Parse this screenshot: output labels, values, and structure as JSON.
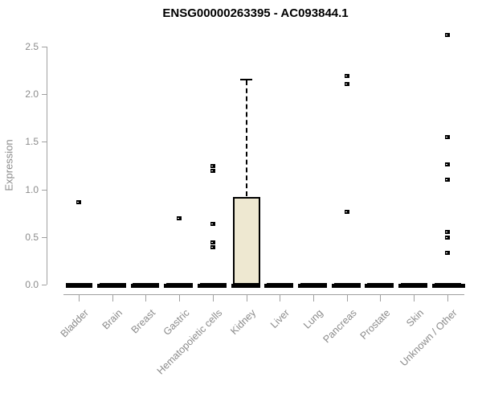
{
  "title": "ENSG00000263395 - AC093844.1",
  "chart_data": {
    "type": "box",
    "title": "ENSG00000263395 - AC093844.1",
    "xlabel": "",
    "ylabel": "Expression",
    "ylim": [
      0,
      2.5
    ],
    "yticks": [
      0.0,
      0.5,
      1.0,
      1.5,
      2.0,
      2.5
    ],
    "grid": false,
    "legend": "none",
    "categories": [
      "Bladder",
      "Brain",
      "Breast",
      "Gastric",
      "Hematopoietic cells",
      "Kidney",
      "Liver",
      "Lung",
      "Pancreas",
      "Prostate",
      "Skin",
      "Unknown / Other"
    ],
    "boxes": [
      {
        "category": "Bladder",
        "median": 0,
        "q1": 0,
        "q3": 0,
        "whisker_low": 0,
        "whisker_high": 0,
        "outliers": [
          0.87
        ]
      },
      {
        "category": "Brain",
        "median": 0,
        "q1": 0,
        "q3": 0,
        "whisker_low": 0,
        "whisker_high": 0,
        "outliers": []
      },
      {
        "category": "Breast",
        "median": 0,
        "q1": 0,
        "q3": 0,
        "whisker_low": 0,
        "whisker_high": 0,
        "outliers": []
      },
      {
        "category": "Gastric",
        "median": 0,
        "q1": 0,
        "q3": 0,
        "whisker_low": 0,
        "whisker_high": 0,
        "outliers": [
          0.7
        ]
      },
      {
        "category": "Hematopoietic cells",
        "median": 0,
        "q1": 0,
        "q3": 0,
        "whisker_low": 0,
        "whisker_high": 0,
        "outliers": [
          1.25,
          1.2,
          0.64,
          0.45,
          0.4
        ]
      },
      {
        "category": "Kidney",
        "median": 0.01,
        "q1": 0,
        "q3": 0.92,
        "whisker_low": 0,
        "whisker_high": 2.15,
        "outliers": []
      },
      {
        "category": "Liver",
        "median": 0,
        "q1": 0,
        "q3": 0,
        "whisker_low": 0,
        "whisker_high": 0,
        "outliers": []
      },
      {
        "category": "Lung",
        "median": 0,
        "q1": 0,
        "q3": 0,
        "whisker_low": 0,
        "whisker_high": 0,
        "outliers": []
      },
      {
        "category": "Pancreas",
        "median": 0,
        "q1": 0,
        "q3": 0,
        "whisker_low": 0,
        "whisker_high": 0,
        "outliers": [
          2.2,
          2.11,
          0.77
        ]
      },
      {
        "category": "Prostate",
        "median": 0,
        "q1": 0,
        "q3": 0,
        "whisker_low": 0,
        "whisker_high": 0,
        "outliers": []
      },
      {
        "category": "Skin",
        "median": 0,
        "q1": 0,
        "q3": 0,
        "whisker_low": 0,
        "whisker_high": 0,
        "outliers": []
      },
      {
        "category": "Unknown / Other",
        "median": 0,
        "q1": 0,
        "q3": 0,
        "whisker_low": 0,
        "whisker_high": 0,
        "outliers": [
          2.63,
          1.55,
          1.27,
          1.11,
          0.56,
          0.5,
          0.34
        ]
      }
    ],
    "colors": {
      "background": "#ffffff",
      "box_fill": "#EEE8D1",
      "box_border": "#000000",
      "outlier_point": "#000000",
      "axis_line": "#a0a0a0",
      "tick_text": "#8b8b8b",
      "title_text": "#000000"
    }
  }
}
